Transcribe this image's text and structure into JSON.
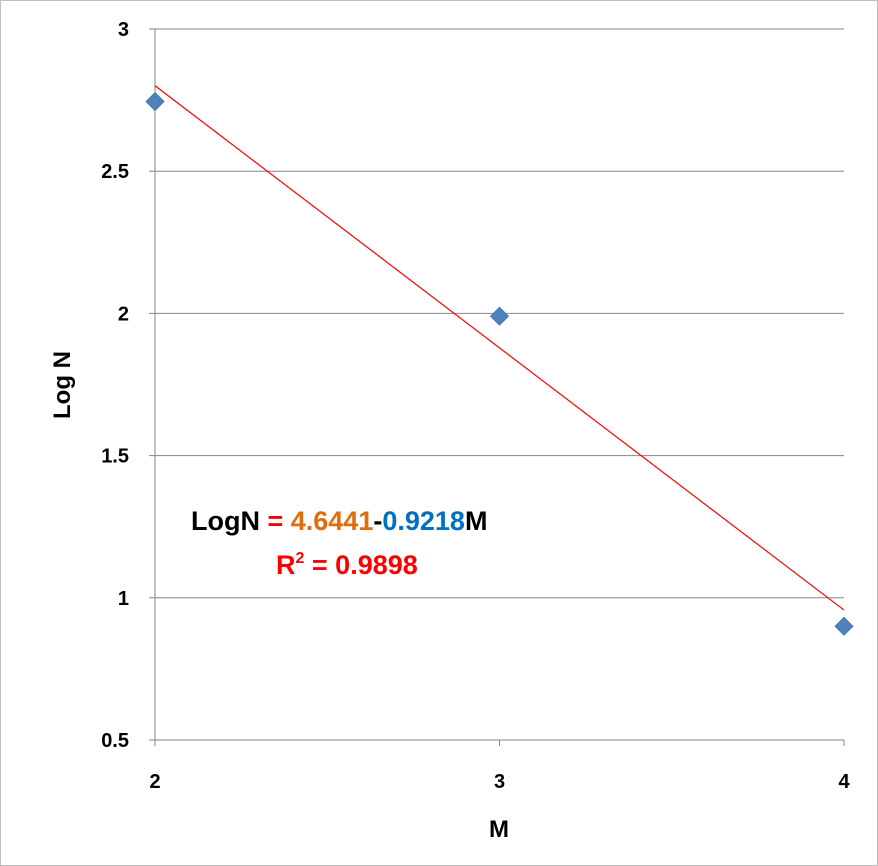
{
  "chart_data": {
    "type": "scatter",
    "xlabel": "M",
    "ylabel": "Log N",
    "xlim": [
      2,
      4
    ],
    "ylim": [
      0.5,
      3
    ],
    "x_ticks": [
      "2",
      "3",
      "4"
    ],
    "y_ticks": [
      "0.5",
      "1",
      "1.5",
      "2",
      "2.5",
      "3"
    ],
    "grid": "horizontal",
    "series": [
      {
        "x": [
          2,
          3,
          4
        ],
        "y": [
          2.745,
          1.99,
          0.9
        ],
        "color": "#4f81bd",
        "marker": "diamond"
      }
    ],
    "trendline": {
      "intercept": 4.6441,
      "slope": -0.9218,
      "color": "#ff0000"
    },
    "annotation": {
      "lhs": "LogN",
      "eq_sign": " = ",
      "intercept_text": "4.6441",
      "minus": "-",
      "slope_text": "0.9218",
      "var": "M",
      "r2_label": "R",
      "r2_sup": "2",
      "r2_value": " = 0.9898",
      "colors": {
        "black": "#000000",
        "red": "#ff0000",
        "orange": "#e36c0a",
        "blue": "#0070c0"
      }
    }
  }
}
